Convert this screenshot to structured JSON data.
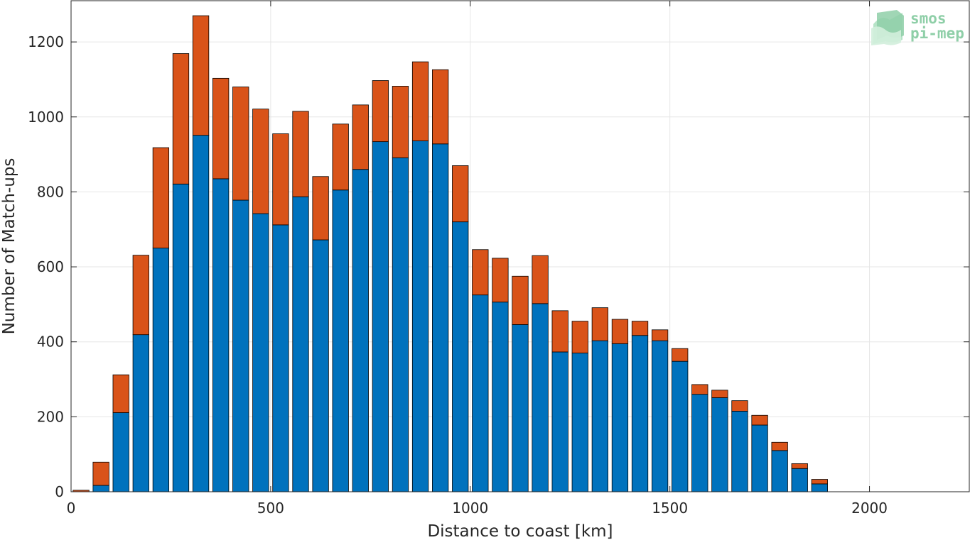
{
  "chart_data": {
    "type": "bar",
    "stacked": true,
    "title": "",
    "xlabel": "Distance to coast [km]",
    "ylabel": "Number of Match-ups",
    "xlim": [
      0,
      2250
    ],
    "ylim": [
      0,
      1310
    ],
    "xticks": [
      0,
      500,
      1000,
      1500,
      2000
    ],
    "yticks": [
      0,
      200,
      400,
      600,
      800,
      1000,
      1200
    ],
    "grid": true,
    "x": [
      25,
      75,
      125,
      175,
      225,
      275,
      325,
      375,
      425,
      475,
      525,
      575,
      625,
      675,
      725,
      775,
      825,
      875,
      925,
      975,
      1025,
      1075,
      1125,
      1175,
      1225,
      1275,
      1325,
      1375,
      1425,
      1475,
      1525,
      1575,
      1625,
      1675,
      1725,
      1775,
      1825,
      1875
    ],
    "series": [
      {
        "color": "#0072bd",
        "values": [
          0,
          17,
          211,
          419,
          650,
          821,
          951,
          835,
          778,
          742,
          712,
          787,
          672,
          805,
          860,
          934,
          891,
          936,
          928,
          720,
          525,
          506,
          446,
          502,
          373,
          370,
          403,
          395,
          417,
          403,
          348,
          260,
          251,
          215,
          178,
          110,
          62,
          21
        ]
      },
      {
        "color": "#d95319",
        "values": [
          4,
          62,
          101,
          212,
          268,
          348,
          319,
          268,
          302,
          279,
          243,
          228,
          169,
          176,
          172,
          163,
          191,
          211,
          198,
          150,
          121,
          117,
          129,
          128,
          110,
          85,
          88,
          65,
          38,
          29,
          34,
          26,
          20,
          28,
          26,
          22,
          13,
          12
        ]
      }
    ]
  },
  "logo": {
    "line1": "smos",
    "line2": "pi-mep"
  }
}
